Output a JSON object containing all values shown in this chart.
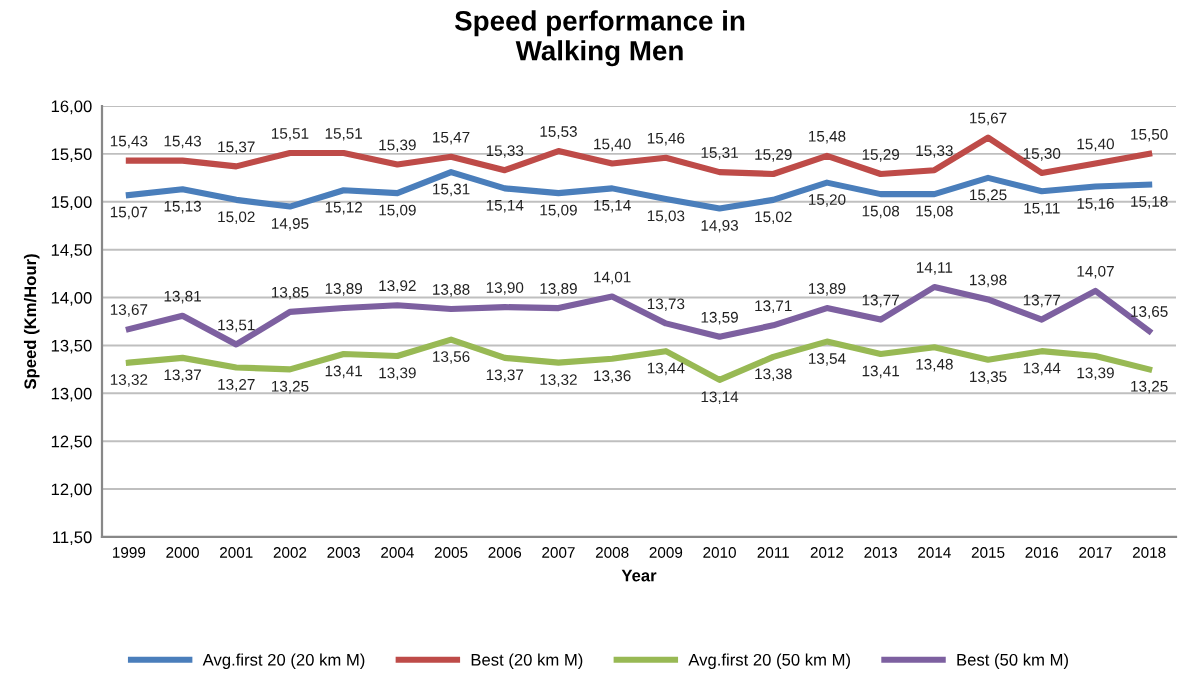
{
  "chart_data": {
    "type": "line",
    "title": "Speed performance in\nWalking Men",
    "xlabel": "Year",
    "ylabel": "Speed (Km/Hour)",
    "categories": [
      "1999",
      "2000",
      "2001",
      "2002",
      "2003",
      "2004",
      "2005",
      "2006",
      "2007",
      "2008",
      "2009",
      "2010",
      "2011",
      "2012",
      "2013",
      "2014",
      "2015",
      "2016",
      "2017",
      "2018"
    ],
    "series": [
      {
        "name": "Avg.first 20 (20 km M)",
        "color": "#4a7ebb",
        "values": [
          15.07,
          15.13,
          15.02,
          14.95,
          15.12,
          15.09,
          15.31,
          15.14,
          15.09,
          15.14,
          15.03,
          14.93,
          15.02,
          15.2,
          15.08,
          15.08,
          15.25,
          15.11,
          15.16,
          15.18
        ],
        "value_labels": [
          "15,07",
          "15,13",
          "15,02",
          "14,95",
          "15,12",
          "15,09",
          "15,31",
          "15,14",
          "15,09",
          "15,14",
          "15,03",
          "14,93",
          "15,02",
          "15,20",
          "15,08",
          "15,08",
          "15,25",
          "15,11",
          "15,16",
          "15,18"
        ]
      },
      {
        "name": "Best (20 km M)",
        "color": "#be4b48",
        "values": [
          15.43,
          15.43,
          15.37,
          15.51,
          15.51,
          15.39,
          15.47,
          15.33,
          15.53,
          15.4,
          15.46,
          15.31,
          15.29,
          15.48,
          15.29,
          15.33,
          15.67,
          15.3,
          15.4,
          15.5
        ],
        "value_labels": [
          "15,43",
          "15,43",
          "15,37",
          "15,51",
          "15,51",
          "15,39",
          "15,47",
          "15,33",
          "15,53",
          "15,40",
          "15,46",
          "15,31",
          "15,29",
          "15,48",
          "15,29",
          "15,33",
          "15,67",
          "15,30",
          "15,40",
          "15,50"
        ]
      },
      {
        "name": "Avg.first 20 (50 km M)",
        "color": "#98b954",
        "values": [
          13.32,
          13.37,
          13.27,
          13.25,
          13.41,
          13.39,
          13.56,
          13.37,
          13.32,
          13.36,
          13.44,
          13.14,
          13.38,
          13.54,
          13.41,
          13.48,
          13.35,
          13.44,
          13.39,
          13.25
        ],
        "value_labels": [
          "13,32",
          "13,37",
          "13,27",
          "13,25",
          "13,41",
          "13,39",
          "13,56",
          "13,37",
          "13,32",
          "13,36",
          "13,44",
          "13,14",
          "13,38",
          "13,54",
          "13,41",
          "13,48",
          "13,35",
          "13,44",
          "13,39",
          "13,25"
        ]
      },
      {
        "name": "Best (50 km M)",
        "color": "#7d60a0",
        "values": [
          13.67,
          13.81,
          13.51,
          13.85,
          13.89,
          13.92,
          13.88,
          13.9,
          13.89,
          14.01,
          13.73,
          13.59,
          13.71,
          13.89,
          13.77,
          14.11,
          13.98,
          13.77,
          14.07,
          13.65
        ],
        "value_labels": [
          "13,67",
          "13,81",
          "13,51",
          "13,85",
          "13,89",
          "13,92",
          "13,88",
          "13,90",
          "13,89",
          "14,01",
          "13,73",
          "13,59",
          "13,71",
          "13,89",
          "13,77",
          "14,11",
          "13,98",
          "13,77",
          "14,07",
          "13,65"
        ]
      }
    ],
    "ylim": [
      11.5,
      16.0
    ],
    "yticks": [
      {
        "value": 11.5,
        "label": "11,50"
      },
      {
        "value": 12.0,
        "label": "12,00"
      },
      {
        "value": 12.5,
        "label": "12,50"
      },
      {
        "value": 13.0,
        "label": "13,00"
      },
      {
        "value": 13.5,
        "label": "13,50"
      },
      {
        "value": 14.0,
        "label": "14,00"
      },
      {
        "value": 14.5,
        "label": "14,50"
      },
      {
        "value": 15.0,
        "label": "15,00"
      },
      {
        "value": 15.5,
        "label": "15,50"
      },
      {
        "value": 16.0,
        "label": "16,00"
      }
    ],
    "grid": "y",
    "legend": "bottom",
    "marker": "none",
    "line_style": "solid"
  }
}
